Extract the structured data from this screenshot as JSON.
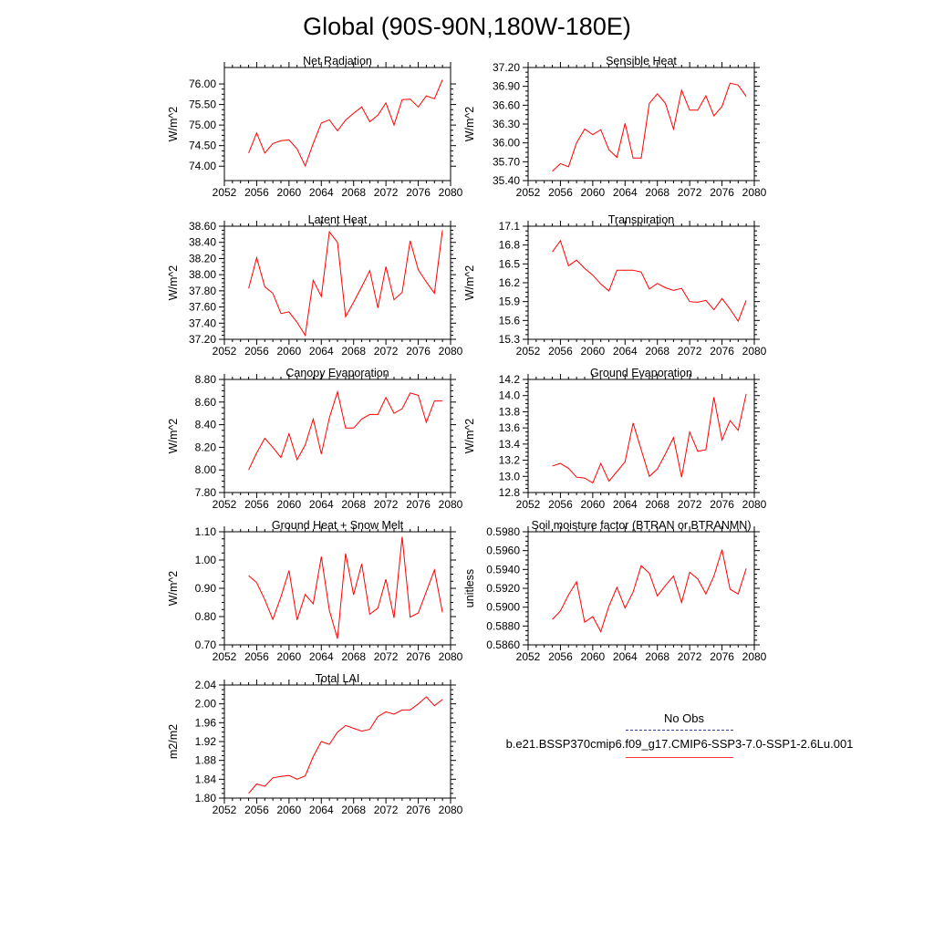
{
  "title": "Global (90S-90N,180W-180E)",
  "legend": {
    "obs_label": "No Obs",
    "case_label": "b.e21.BSSP370cmip6.f09_g17.CMIP6-SSP3-7.0-SSP1-2.6Lu.001",
    "obs_color": "#3a3a9a",
    "case_color": "#ff0000"
  },
  "chart_data": [
    {
      "type": "line",
      "title": "Net Radiation",
      "ylabel": "W/m^2",
      "xlim": [
        2052,
        2080
      ],
      "ylim": [
        73.65,
        76.4
      ],
      "x_ticks": [
        "2052",
        "2056",
        "2060",
        "2064",
        "2068",
        "2072",
        "2076",
        "2080"
      ],
      "y_ticks": [
        "74.00",
        "74.50",
        "75.00",
        "75.50",
        "76.00"
      ],
      "series": [
        {
          "x": [
            2055,
            2056,
            2057,
            2058,
            2059,
            2060,
            2061,
            2062,
            2063,
            2064,
            2065,
            2066,
            2067,
            2068,
            2069,
            2070,
            2071,
            2072,
            2073,
            2074,
            2075,
            2076,
            2077,
            2078,
            2079
          ],
          "y": [
            74.32,
            74.81,
            74.32,
            74.55,
            74.62,
            74.64,
            74.42,
            74.01,
            74.55,
            75.05,
            75.13,
            74.86,
            75.12,
            75.29,
            75.44,
            75.08,
            75.24,
            75.54,
            75.0,
            75.62,
            75.63,
            75.44,
            75.71,
            75.64,
            76.1
          ]
        }
      ]
    },
    {
      "type": "line",
      "title": "Sensible Heat",
      "ylabel": "W/m^2",
      "xlim": [
        2052,
        2080
      ],
      "ylim": [
        35.4,
        37.2
      ],
      "x_ticks": [
        "2052",
        "2056",
        "2060",
        "2064",
        "2068",
        "2072",
        "2076",
        "2080"
      ],
      "y_ticks": [
        "35.40",
        "35.70",
        "36.00",
        "36.30",
        "36.60",
        "36.90",
        "37.20"
      ],
      "series": [
        {
          "x": [
            2055,
            2056,
            2057,
            2058,
            2059,
            2060,
            2061,
            2062,
            2063,
            2064,
            2065,
            2066,
            2067,
            2068,
            2069,
            2070,
            2071,
            2072,
            2073,
            2074,
            2075,
            2076,
            2077,
            2078,
            2079
          ],
          "y": [
            35.55,
            35.67,
            35.62,
            36.0,
            36.22,
            36.13,
            36.21,
            35.89,
            35.77,
            36.31,
            35.76,
            35.76,
            36.63,
            36.78,
            36.63,
            36.22,
            36.84,
            36.52,
            36.52,
            36.75,
            36.43,
            36.58,
            36.95,
            36.92,
            36.74
          ]
        }
      ]
    },
    {
      "type": "line",
      "title": "Latent Heat",
      "ylabel": "W/m^2",
      "xlim": [
        2052,
        2080
      ],
      "ylim": [
        37.2,
        38.6
      ],
      "x_ticks": [
        "2052",
        "2056",
        "2060",
        "2064",
        "2068",
        "2072",
        "2076",
        "2080"
      ],
      "y_ticks": [
        "37.20",
        "37.40",
        "37.60",
        "37.80",
        "38.00",
        "38.20",
        "38.40",
        "38.60"
      ],
      "series": [
        {
          "x": [
            2055,
            2056,
            2057,
            2058,
            2059,
            2060,
            2061,
            2062,
            2063,
            2064,
            2065,
            2066,
            2067,
            2068,
            2069,
            2070,
            2071,
            2072,
            2073,
            2074,
            2075,
            2076,
            2077,
            2078,
            2079
          ],
          "y": [
            37.83,
            38.21,
            37.85,
            37.77,
            37.52,
            37.54,
            37.41,
            37.25,
            37.93,
            37.73,
            38.53,
            38.4,
            37.48,
            37.66,
            37.85,
            38.05,
            37.59,
            38.1,
            37.69,
            37.78,
            38.42,
            38.06,
            37.91,
            37.77,
            38.55
          ]
        }
      ]
    },
    {
      "type": "line",
      "title": "Transpiration",
      "ylabel": "W/m^2",
      "xlim": [
        2052,
        2080
      ],
      "ylim": [
        15.3,
        17.1
      ],
      "x_ticks": [
        "2052",
        "2056",
        "2060",
        "2064",
        "2068",
        "2072",
        "2076",
        "2080"
      ],
      "y_ticks": [
        "15.3",
        "15.6",
        "15.9",
        "16.2",
        "16.5",
        "16.8",
        "17.1"
      ],
      "series": [
        {
          "x": [
            2055,
            2056,
            2057,
            2058,
            2059,
            2060,
            2061,
            2062,
            2063,
            2064,
            2065,
            2066,
            2067,
            2068,
            2069,
            2070,
            2071,
            2072,
            2073,
            2074,
            2075,
            2076,
            2077,
            2078,
            2079
          ],
          "y": [
            16.69,
            16.87,
            16.47,
            16.56,
            16.43,
            16.32,
            16.18,
            16.07,
            16.4,
            16.4,
            16.4,
            16.37,
            16.1,
            16.19,
            16.12,
            16.08,
            16.11,
            15.9,
            15.89,
            15.92,
            15.77,
            15.95,
            15.78,
            15.59,
            15.92
          ]
        }
      ]
    },
    {
      "type": "line",
      "title": "Canopy Evaporation",
      "ylabel": "W/m^2",
      "xlim": [
        2052,
        2080
      ],
      "ylim": [
        7.8,
        8.8
      ],
      "x_ticks": [
        "2052",
        "2056",
        "2060",
        "2064",
        "2068",
        "2072",
        "2076",
        "2080"
      ],
      "y_ticks": [
        "7.80",
        "8.00",
        "8.20",
        "8.40",
        "8.60",
        "8.80"
      ],
      "series": [
        {
          "x": [
            2055,
            2056,
            2057,
            2058,
            2059,
            2060,
            2061,
            2062,
            2063,
            2064,
            2065,
            2066,
            2067,
            2068,
            2069,
            2070,
            2071,
            2072,
            2073,
            2074,
            2075,
            2076,
            2077,
            2078,
            2079
          ],
          "y": [
            8.0,
            8.15,
            8.28,
            8.2,
            8.11,
            8.32,
            8.09,
            8.22,
            8.45,
            8.14,
            8.46,
            8.69,
            8.37,
            8.37,
            8.45,
            8.49,
            8.49,
            8.64,
            8.5,
            8.54,
            8.68,
            8.66,
            8.42,
            8.61,
            8.61
          ]
        }
      ]
    },
    {
      "type": "line",
      "title": "Ground Evaporation",
      "ylabel": "W/m^2",
      "xlim": [
        2052,
        2080
      ],
      "ylim": [
        12.8,
        14.2
      ],
      "x_ticks": [
        "2052",
        "2056",
        "2060",
        "2064",
        "2068",
        "2072",
        "2076",
        "2080"
      ],
      "y_ticks": [
        "12.8",
        "13.0",
        "13.2",
        "13.4",
        "13.6",
        "13.8",
        "14.0",
        "14.2"
      ],
      "series": [
        {
          "x": [
            2055,
            2056,
            2057,
            2058,
            2059,
            2060,
            2061,
            2062,
            2063,
            2064,
            2065,
            2066,
            2067,
            2068,
            2069,
            2070,
            2071,
            2072,
            2073,
            2074,
            2075,
            2076,
            2077,
            2078,
            2079
          ],
          "y": [
            13.13,
            13.16,
            13.1,
            12.99,
            12.98,
            12.92,
            13.16,
            12.94,
            13.06,
            13.18,
            13.66,
            13.33,
            13.0,
            13.09,
            13.28,
            13.48,
            12.99,
            13.55,
            13.31,
            13.33,
            13.98,
            13.45,
            13.69,
            13.57,
            14.02
          ]
        }
      ]
    },
    {
      "type": "line",
      "title": "Ground Heat + Snow Melt",
      "ylabel": "W/m^2",
      "xlim": [
        2052,
        2080
      ],
      "ylim": [
        0.7,
        1.1
      ],
      "x_ticks": [
        "2052",
        "2056",
        "2060",
        "2064",
        "2068",
        "2072",
        "2076",
        "2080"
      ],
      "y_ticks": [
        "0.70",
        "0.80",
        "0.90",
        "1.00",
        "1.10"
      ],
      "series": [
        {
          "x": [
            2055,
            2056,
            2057,
            2058,
            2059,
            2060,
            2061,
            2062,
            2063,
            2064,
            2065,
            2066,
            2067,
            2068,
            2069,
            2070,
            2071,
            2072,
            2073,
            2074,
            2075,
            2076,
            2077,
            2078,
            2079
          ],
          "y": [
            0.945,
            0.92,
            0.86,
            0.79,
            0.87,
            0.963,
            0.788,
            0.878,
            0.845,
            1.012,
            0.822,
            0.722,
            1.023,
            0.877,
            0.986,
            0.808,
            0.83,
            0.932,
            0.795,
            1.082,
            0.798,
            0.813,
            0.888,
            0.965,
            0.815
          ]
        }
      ]
    },
    {
      "type": "line",
      "title": "Soil moisture factor (BTRAN or BTRANMN)",
      "ylabel": "unitless",
      "xlim": [
        2052,
        2080
      ],
      "ylim": [
        0.586,
        0.598
      ],
      "x_ticks": [
        "2052",
        "2056",
        "2060",
        "2064",
        "2068",
        "2072",
        "2076",
        "2080"
      ],
      "y_ticks": [
        "0.5860",
        "0.5880",
        "0.5900",
        "0.5920",
        "0.5940",
        "0.5960",
        "0.5980"
      ],
      "series": [
        {
          "x": [
            2055,
            2056,
            2057,
            2058,
            2059,
            2060,
            2061,
            2062,
            2063,
            2064,
            2065,
            2066,
            2067,
            2068,
            2069,
            2070,
            2071,
            2072,
            2073,
            2074,
            2075,
            2076,
            2077,
            2078,
            2079
          ],
          "y": [
            0.5887,
            0.5896,
            0.5913,
            0.5927,
            0.5884,
            0.589,
            0.5874,
            0.5901,
            0.5921,
            0.5899,
            0.5916,
            0.5944,
            0.5936,
            0.5912,
            0.5923,
            0.5933,
            0.5905,
            0.5937,
            0.593,
            0.5914,
            0.5933,
            0.5961,
            0.5919,
            0.5914,
            0.5941
          ]
        }
      ]
    },
    {
      "type": "line",
      "title": "Total LAI",
      "ylabel": "m2/m2",
      "xlim": [
        2052,
        2080
      ],
      "ylim": [
        1.8,
        2.04
      ],
      "x_ticks": [
        "2052",
        "2056",
        "2060",
        "2064",
        "2068",
        "2072",
        "2076",
        "2080"
      ],
      "y_ticks": [
        "1.80",
        "1.84",
        "1.88",
        "1.92",
        "1.96",
        "2.00",
        "2.04"
      ],
      "series": [
        {
          "x": [
            2055,
            2056,
            2057,
            2058,
            2059,
            2060,
            2061,
            2062,
            2063,
            2064,
            2065,
            2066,
            2067,
            2068,
            2069,
            2070,
            2071,
            2072,
            2073,
            2074,
            2075,
            2076,
            2077,
            2078,
            2079
          ],
          "y": [
            1.81,
            1.83,
            1.825,
            1.843,
            1.846,
            1.848,
            1.84,
            1.847,
            1.888,
            1.92,
            1.914,
            1.94,
            1.954,
            1.948,
            1.942,
            1.946,
            1.973,
            1.983,
            1.978,
            1.987,
            1.987,
            2.0,
            2.015,
            1.996,
            2.009
          ]
        }
      ]
    }
  ]
}
